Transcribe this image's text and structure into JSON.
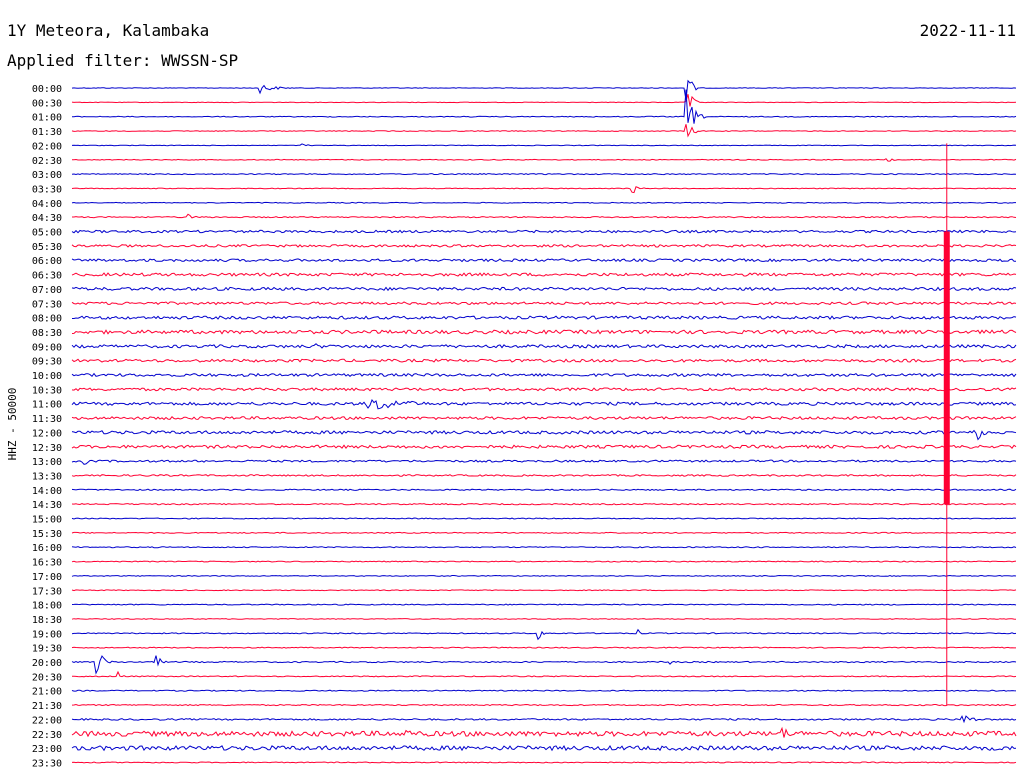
{
  "header": {
    "station": "1Y Meteora, Kalambaka",
    "date": "2022-11-11",
    "filter": "Applied filter: WWSSN-SP"
  },
  "chart_data": {
    "type": "line",
    "title": "1Y Meteora, Kalambaka",
    "ylabel": "HHZ - 50000",
    "colors": [
      "#0000cc",
      "#ff0033"
    ],
    "line_labels": [
      "00:00",
      "00:30",
      "01:00",
      "01:30",
      "02:00",
      "02:30",
      "03:00",
      "03:30",
      "04:00",
      "04:30",
      "05:00",
      "05:30",
      "06:00",
      "06:30",
      "07:00",
      "07:30",
      "08:00",
      "08:30",
      "09:00",
      "09:30",
      "10:00",
      "10:30",
      "11:00",
      "11:30",
      "12:00",
      "12:30",
      "13:00",
      "13:30",
      "14:00",
      "14:30",
      "15:00",
      "15:30",
      "16:00",
      "16:30",
      "17:00",
      "17:30",
      "18:00",
      "18:30",
      "19:00",
      "19:30",
      "20:00",
      "20:30",
      "21:00",
      "21:30",
      "22:00",
      "22:30",
      "23:00",
      "23:30"
    ],
    "noise_levels": [
      0.3,
      0.3,
      0.4,
      0.4,
      0.3,
      0.4,
      0.5,
      0.4,
      0.4,
      0.6,
      1.2,
      1.2,
      1.3,
      1.5,
      1.5,
      1.3,
      1.5,
      1.8,
      1.5,
      1.4,
      1.4,
      1.4,
      1.5,
      1.4,
      1.6,
      1.5,
      1.0,
      0.8,
      0.6,
      0.6,
      0.5,
      0.5,
      0.5,
      0.5,
      0.4,
      0.4,
      0.5,
      0.4,
      0.5,
      0.5,
      0.6,
      0.5,
      0.5,
      0.6,
      0.8,
      2.5,
      2.2,
      0.5
    ],
    "x_span_minutes": 30,
    "events": [
      {
        "line": 0,
        "minute": 6.0,
        "amplitude": 5,
        "duration": 1.2
      },
      {
        "line": 0,
        "minute": 19.5,
        "amplitude": 30,
        "duration": 0.4
      },
      {
        "line": 1,
        "minute": 19.5,
        "amplitude": 25,
        "duration": 0.4
      },
      {
        "line": 2,
        "minute": 19.5,
        "amplitude": 30,
        "duration": 0.6
      },
      {
        "line": 3,
        "minute": 19.5,
        "amplitude": 10,
        "duration": 0.6
      },
      {
        "line": 4,
        "minute": 7.3,
        "amplitude": 2,
        "duration": 0.6
      },
      {
        "line": 5,
        "minute": 25.9,
        "amplitude": 2,
        "duration": 0.7
      },
      {
        "line": 7,
        "minute": 17.8,
        "amplitude": 6,
        "duration": 0.5
      },
      {
        "line": 9,
        "minute": 3.7,
        "amplitude": 3,
        "duration": 0.6
      },
      {
        "line": 18,
        "minute": 7.8,
        "amplitude": 3,
        "duration": 0.8
      },
      {
        "line": 22,
        "minute": 9.4,
        "amplitude": 8,
        "duration": 3.5
      },
      {
        "line": 24,
        "minute": 28.7,
        "amplitude": 12,
        "duration": 0.6
      },
      {
        "line": 26,
        "minute": 0.4,
        "amplitude": 4,
        "duration": 0.5
      },
      {
        "line": 38,
        "minute": 14.8,
        "amplitude": 9,
        "duration": 0.3
      },
      {
        "line": 38,
        "minute": 18.0,
        "amplitude": 4,
        "duration": 0.2
      },
      {
        "line": 40,
        "minute": 0.8,
        "amplitude": 14,
        "duration": 0.6
      },
      {
        "line": 40,
        "minute": 2.7,
        "amplitude": 7,
        "duration": 0.4
      },
      {
        "line": 40,
        "minute": 19.0,
        "amplitude": 4,
        "duration": 0.4
      },
      {
        "line": 41,
        "minute": 1.5,
        "amplitude": 5,
        "duration": 0.3
      },
      {
        "line": 44,
        "minute": 28.3,
        "amplitude": 6,
        "duration": 1.0
      },
      {
        "line": 45,
        "minute": 10.6,
        "amplitude": 5,
        "duration": 1.0
      },
      {
        "line": 45,
        "minute": 22.6,
        "amplitude": 6,
        "duration": 1.2
      }
    ],
    "major_event": {
      "start_line": 4,
      "end_line": 43,
      "minute": 27.8
    }
  }
}
